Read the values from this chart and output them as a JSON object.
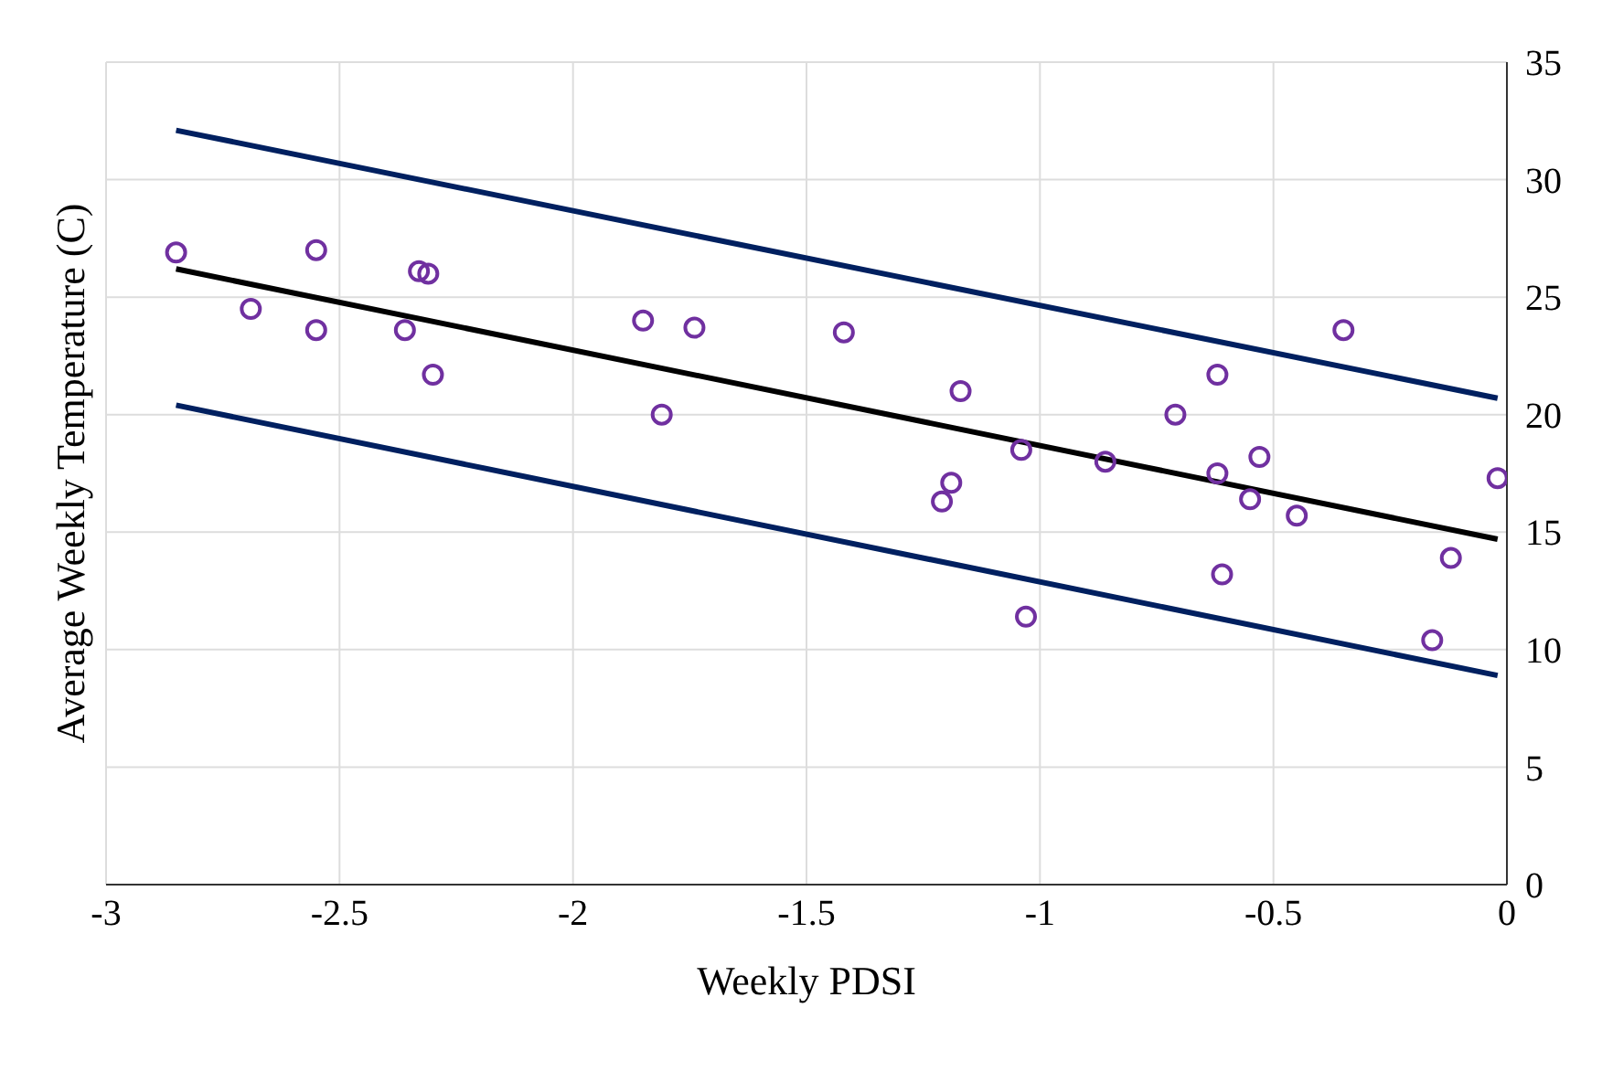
{
  "chart_data": {
    "type": "scatter",
    "xlabel": "Weekly PDSI",
    "ylabel": "Average Weekly Temperature (C)",
    "xlim": [
      -3,
      0
    ],
    "xticks": [
      -3,
      -2.5,
      -2,
      -1.5,
      -1,
      -0.5,
      0
    ],
    "ylim": [
      0,
      35
    ],
    "yticks": [
      0,
      5,
      10,
      15,
      20,
      25,
      30,
      35
    ],
    "grid": true,
    "legend": false,
    "series": [
      {
        "color": "#7030a0",
        "marker": "circle",
        "x": [
          -2.85,
          -2.69,
          -2.55,
          -2.55,
          -2.36,
          -2.33,
          -2.31,
          -2.3,
          -1.85,
          -1.81,
          -1.74,
          -1.42,
          -1.17,
          -1.21,
          -1.19,
          -1.04,
          -1.03,
          -0.86,
          -0.71,
          -0.62,
          -0.62,
          -0.61,
          -0.55,
          -0.53,
          -0.45,
          -0.35,
          -0.12,
          -0.16,
          -0.02
        ],
        "values": [
          26.9,
          24.5,
          27.0,
          23.6,
          23.6,
          26.1,
          26.0,
          21.7,
          24.0,
          20.0,
          23.7,
          23.5,
          21.0,
          16.3,
          17.1,
          18.5,
          11.4,
          18.0,
          20.0,
          21.7,
          17.5,
          13.2,
          16.4,
          18.2,
          15.7,
          23.6,
          13.9,
          10.4,
          17.3
        ]
      },
      {
        "type": "line",
        "color": "#002060",
        "marker": "none",
        "x": [
          -2.85,
          -0.02
        ],
        "values": [
          32.1,
          20.7
        ]
      },
      {
        "type": "line",
        "color": "#000000",
        "marker": "none",
        "x": [
          -2.85,
          -0.02
        ],
        "values": [
          26.2,
          14.7
        ]
      },
      {
        "type": "line",
        "color": "#002060",
        "marker": "none",
        "x": [
          -2.85,
          -0.02
        ],
        "values": [
          20.4,
          8.9
        ]
      }
    ]
  }
}
